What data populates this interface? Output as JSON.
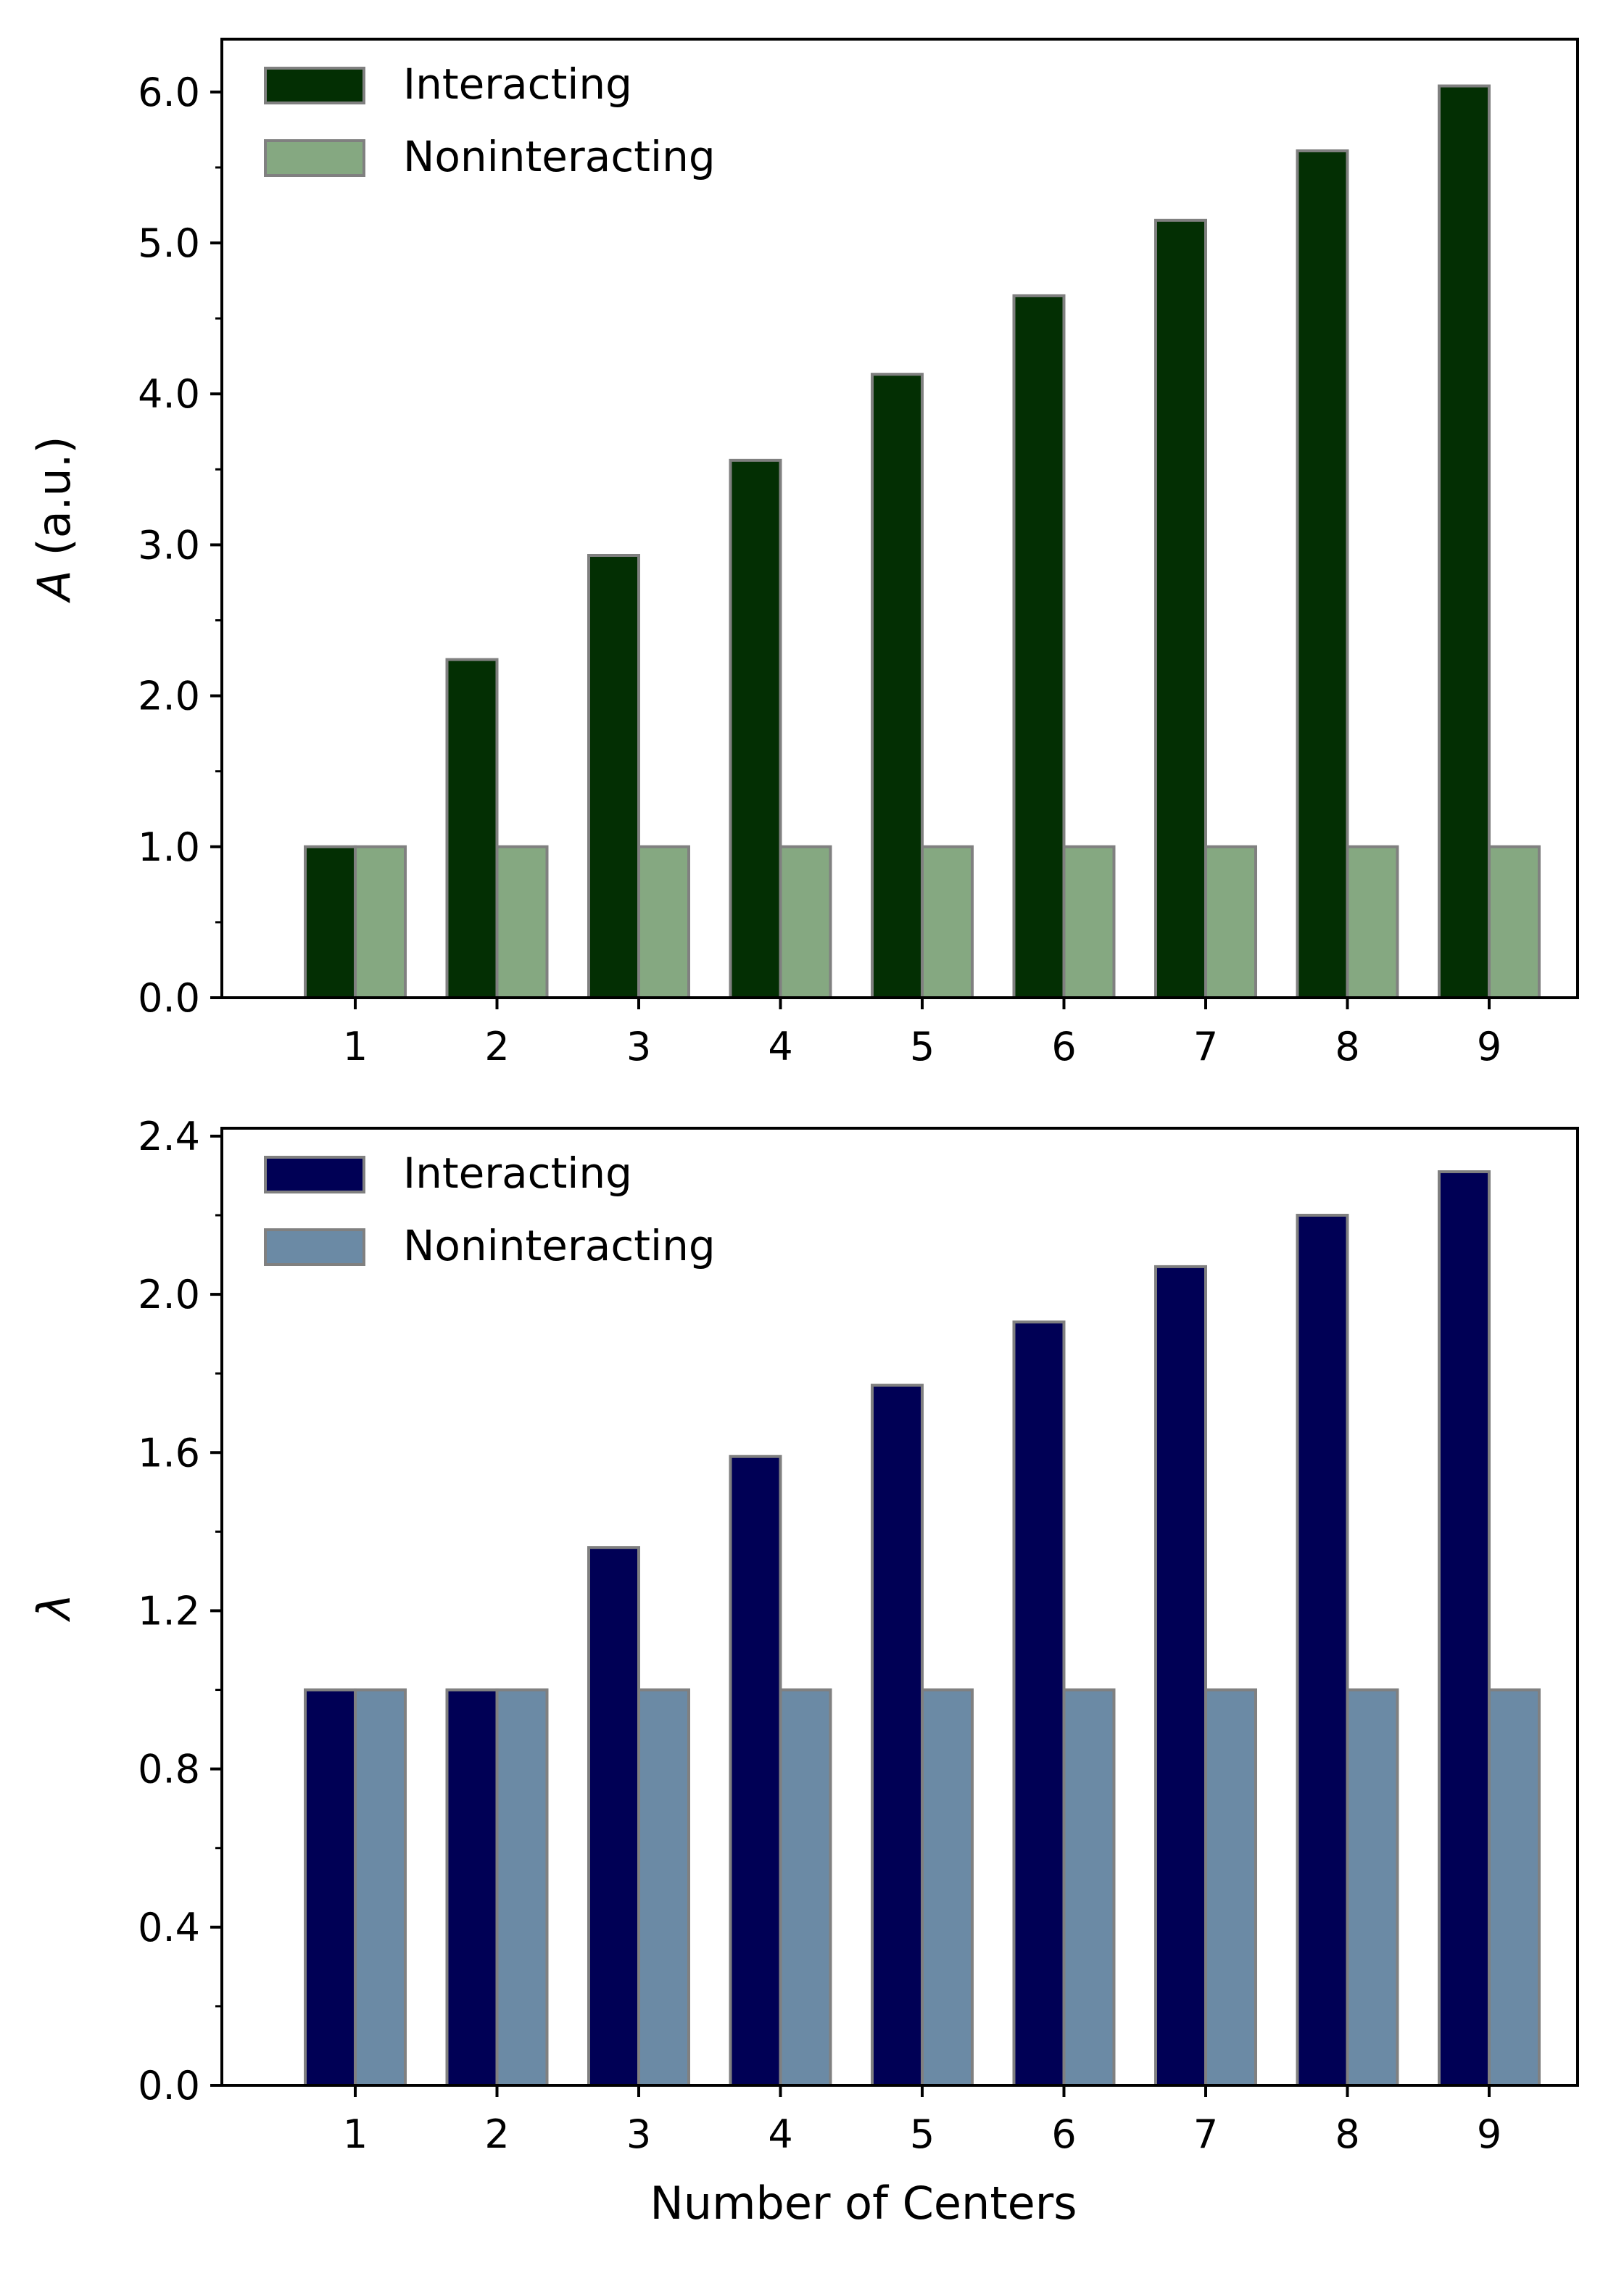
{
  "chart_data": [
    {
      "type": "bar",
      "categories": [
        "1",
        "2",
        "3",
        "4",
        "5",
        "6",
        "7",
        "8",
        "9"
      ],
      "series": [
        {
          "name": "Interacting",
          "values": [
            1.0,
            2.24,
            2.93,
            3.56,
            4.13,
            4.65,
            5.15,
            5.61,
            6.04
          ]
        },
        {
          "name": "Noninteracting",
          "values": [
            1.0,
            1.0,
            1.0,
            1.0,
            1.0,
            1.0,
            1.0,
            1.0,
            1.0
          ]
        }
      ],
      "colors": [
        "#032f03",
        "#85a881"
      ],
      "edge_color": "#808080",
      "title": "",
      "xlabel": "",
      "ylabel": "(a.u.)",
      "ylabel_symbol": "A",
      "ylim": [
        0,
        6.35
      ],
      "yticks": [
        "0.0",
        "1.0",
        "2.0",
        "3.0",
        "4.0",
        "5.0",
        "6.0"
      ],
      "ytick_values": [
        0,
        1,
        2,
        3,
        4,
        5,
        6
      ],
      "yminor_values": [
        0.5,
        1.5,
        2.5,
        3.5,
        4.5,
        5.5
      ],
      "legend": "top-left",
      "grid": false
    },
    {
      "type": "bar",
      "categories": [
        "1",
        "2",
        "3",
        "4",
        "5",
        "6",
        "7",
        "8",
        "9"
      ],
      "series": [
        {
          "name": "Interacting",
          "values": [
            1.0,
            1.0,
            1.36,
            1.59,
            1.77,
            1.93,
            2.07,
            2.2,
            2.31
          ]
        },
        {
          "name": "Noninteracting",
          "values": [
            1.0,
            1.0,
            1.0,
            1.0,
            1.0,
            1.0,
            1.0,
            1.0,
            1.0
          ]
        }
      ],
      "colors": [
        "#000055",
        "#6b8aa5"
      ],
      "edge_color": "#808080",
      "title": "",
      "xlabel": "Number of Centers",
      "ylabel": "",
      "ylabel_symbol": "λ",
      "ylim": [
        0,
        2.42
      ],
      "yticks": [
        "0.0",
        "0.4",
        "0.8",
        "1.2",
        "1.6",
        "2.0",
        "2.4"
      ],
      "ytick_values": [
        0,
        0.4,
        0.8,
        1.2,
        1.6,
        2.0,
        2.4
      ],
      "yminor_values": [
        0.2,
        0.6,
        1.0,
        1.4,
        1.8,
        2.2
      ],
      "legend": "top-left",
      "grid": false
    }
  ]
}
